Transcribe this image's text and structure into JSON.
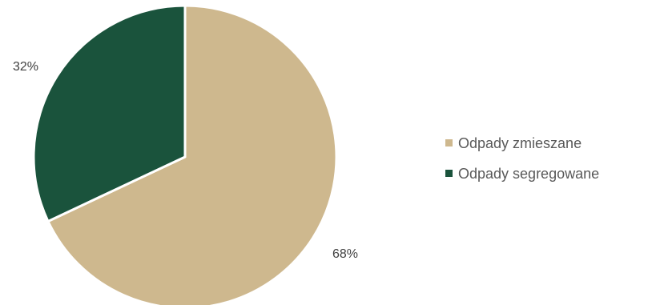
{
  "chart_data": {
    "type": "pie",
    "slices": [
      {
        "name": "Odpady zmieszane",
        "value": 68,
        "label": "68%",
        "color": "#CEB88E"
      },
      {
        "name": "Odpady segregowane",
        "value": 32,
        "label": "32%",
        "color": "#1A533C"
      }
    ],
    "legend_position": "right",
    "start_angle": "12 o'clock",
    "direction": "clockwise"
  }
}
